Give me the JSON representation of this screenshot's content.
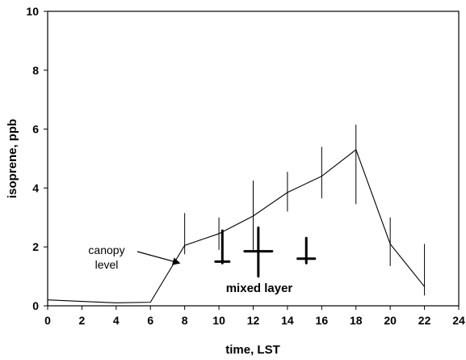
{
  "chart_data": {
    "type": "line",
    "xlabel": "time, LST",
    "ylabel": "isoprene, ppb",
    "xlim": [
      0,
      24
    ],
    "ylim": [
      0,
      10
    ],
    "xticks": [
      0,
      2,
      4,
      6,
      8,
      10,
      12,
      14,
      16,
      18,
      20,
      22,
      24
    ],
    "yticks": [
      0,
      2,
      4,
      6,
      8,
      10
    ],
    "grid": false,
    "series": [
      {
        "name": "canopy level",
        "points": [
          {
            "x": 0,
            "y": 0.2
          },
          {
            "x": 2,
            "y": 0.15
          },
          {
            "x": 4,
            "y": 0.1
          },
          {
            "x": 6,
            "y": 0.12
          },
          {
            "x": 8,
            "y": 2.05
          },
          {
            "x": 10,
            "y": 2.45
          },
          {
            "x": 12,
            "y": 3.05
          },
          {
            "x": 14,
            "y": 3.85
          },
          {
            "x": 16,
            "y": 4.4
          },
          {
            "x": 18,
            "y": 5.3
          },
          {
            "x": 20,
            "y": 2.1
          },
          {
            "x": 22,
            "y": 0.65
          }
        ],
        "error_bars": [
          {
            "x": 8,
            "low": 1.75,
            "high": 3.15
          },
          {
            "x": 10,
            "low": 1.9,
            "high": 3.0
          },
          {
            "x": 12,
            "low": 1.85,
            "high": 4.25
          },
          {
            "x": 14,
            "low": 3.2,
            "high": 4.55
          },
          {
            "x": 16,
            "low": 3.65,
            "high": 5.4
          },
          {
            "x": 18,
            "low": 3.45,
            "high": 6.15
          },
          {
            "x": 20,
            "low": 1.35,
            "high": 3.0
          },
          {
            "x": 22,
            "low": 0.35,
            "high": 2.1
          }
        ]
      },
      {
        "name": "mixed layer",
        "points": [
          {
            "x": 10.2,
            "y": 1.5,
            "ylow": 1.45,
            "yhigh": 2.55,
            "xlow": 9.8,
            "xhigh": 10.6
          },
          {
            "x": 12.3,
            "y": 1.85,
            "ylow": 1.0,
            "yhigh": 2.65,
            "xlow": 11.5,
            "xhigh": 13.1
          },
          {
            "x": 15.1,
            "y": 1.6,
            "ylow": 1.45,
            "yhigh": 2.3,
            "xlow": 14.6,
            "xhigh": 15.6
          }
        ]
      }
    ],
    "annotations": [
      {
        "text_lines": [
          "canopy",
          "level"
        ],
        "arrow_to": {
          "x": 7.7,
          "y": 1.45
        }
      },
      {
        "text": "mixed layer"
      }
    ]
  }
}
